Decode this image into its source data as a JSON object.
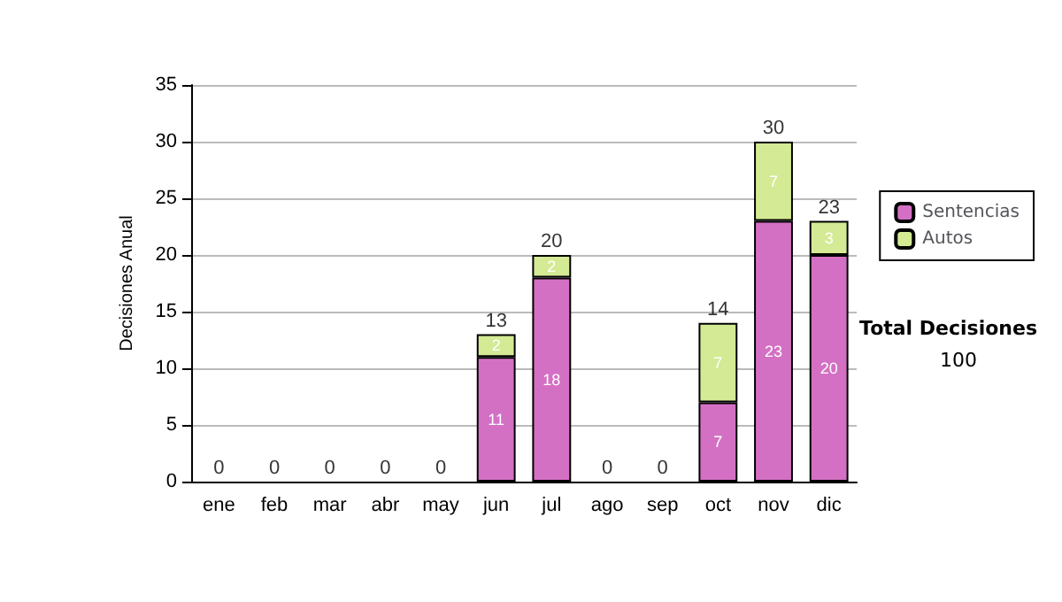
{
  "chart_data": {
    "type": "bar",
    "stacked": true,
    "ylabel": "Decisiones Anual",
    "categories": [
      "ene",
      "feb",
      "mar",
      "abr",
      "may",
      "jun",
      "jul",
      "ago",
      "sep",
      "oct",
      "nov",
      "dic"
    ],
    "series": [
      {
        "name": "Sentencias",
        "color": "#d470c4",
        "values": [
          0,
          0,
          0,
          0,
          0,
          11,
          18,
          0,
          0,
          7,
          23,
          20
        ],
        "value_labels": [
          null,
          null,
          null,
          null,
          null,
          "11",
          "18",
          null,
          null,
          "7",
          "23",
          "20"
        ]
      },
      {
        "name": "Autos",
        "color": "#d4ea94",
        "values": [
          0,
          0,
          0,
          0,
          0,
          2,
          2,
          0,
          0,
          7,
          7,
          3
        ],
        "value_labels": [
          null,
          null,
          null,
          null,
          null,
          "2",
          "2",
          null,
          null,
          "7",
          "7",
          "3"
        ]
      }
    ],
    "totals": [
      "0",
      "0",
      "0",
      "0",
      "0",
      "13",
      "20",
      "0",
      "0",
      "14",
      "30",
      "23"
    ],
    "ylim": [
      0,
      35
    ],
    "yticks": [
      0,
      5,
      10,
      15,
      20,
      25,
      30,
      35
    ],
    "grid": "y",
    "legend": "right",
    "annotations": [
      "Total Decisiones",
      "100"
    ]
  }
}
